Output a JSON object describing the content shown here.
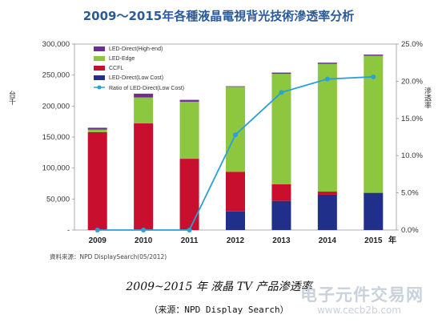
{
  "chart_data": {
    "type": "bar",
    "stacked": true,
    "title": "2009～2015年各種液晶電視背光技術滲透率分析",
    "categories": [
      "2009",
      "2010",
      "2011",
      "2012",
      "2013",
      "2014",
      "2015"
    ],
    "x_unit": "年",
    "y_left_label": "台千",
    "y_right_label": "滲透率",
    "y_left_range": [
      0,
      300000
    ],
    "y_right_range": [
      0,
      25
    ],
    "y_left_ticks": [
      "300,000",
      "250,000",
      "200,000",
      "150,000",
      "100,000",
      "50,000",
      "-"
    ],
    "y_right_ticks": [
      "25.0%",
      "20.0%",
      "15.0%",
      "10.0%",
      "5.0%",
      "0.0%"
    ],
    "series": [
      {
        "name": "LED-Direct(Low Cost)",
        "color": "#1f2f8a",
        "values": [
          0,
          0,
          0,
          30000,
          47000,
          57000,
          60000
        ]
      },
      {
        "name": "CCFL",
        "color": "#c8102e",
        "values": [
          158000,
          172000,
          115000,
          64000,
          27000,
          5000,
          0
        ]
      },
      {
        "name": "LED-Edge",
        "color": "#8dc63f",
        "values": [
          4000,
          42000,
          92000,
          137000,
          178000,
          206000,
          221000
        ]
      },
      {
        "name": "LED-Direct(High-end)",
        "color": "#6f2c91",
        "values": [
          3000,
          6000,
          3000,
          1000,
          2000,
          2000,
          2000
        ]
      }
    ],
    "line": {
      "name": "Ratio of LED-Direct(Low Cost)",
      "color": "#2a9fd8",
      "axis": "right",
      "values": [
        0,
        0,
        0,
        12.8,
        18.5,
        20.3,
        20.6
      ]
    },
    "legend_placement": "top-left inside plot",
    "grid": false,
    "source": "資料來源：NPD DisplaySearch(05/2012)"
  },
  "caption": {
    "main": "2009~2015 年 液晶 TV 产品渗透率",
    "sub": "（来源：NPD Display Search）"
  },
  "watermark": {
    "main": "电子元件交易网",
    "url": "www.cecb2b.com"
  }
}
